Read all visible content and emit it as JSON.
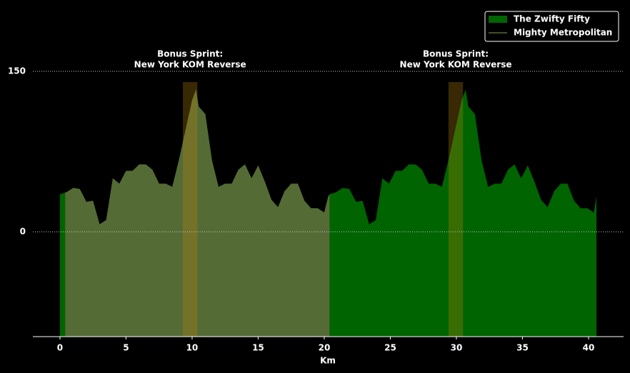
{
  "chart_data": {
    "type": "area",
    "xlabel": "Km",
    "xlim": [
      -2.05,
      42.65
    ],
    "ylim": [
      -98,
      216.7
    ],
    "xticks": [
      0,
      5,
      10,
      15,
      20,
      25,
      30,
      35,
      40
    ],
    "yticks": [
      0,
      150
    ],
    "grid": "y",
    "legend": "upper right",
    "series": [
      {
        "name": "The Zwifty Fifty",
        "color": "#006400",
        "legend_marker": "patch",
        "x": [
          0,
          0.5,
          1,
          1.5,
          2,
          2.5,
          3,
          3.5,
          4,
          4.5,
          5,
          5.5,
          6,
          6.5,
          7,
          7.5,
          8,
          8.5,
          9,
          9.5,
          10,
          10.3,
          10.5,
          11,
          11.5,
          12,
          12.5,
          13,
          13.5,
          14,
          14.5,
          15,
          15.5,
          16,
          16.5,
          17,
          17.5,
          18,
          18.5,
          19,
          19.5,
          20,
          20.3,
          20.4,
          20.9,
          21.4,
          21.9,
          22.4,
          22.9,
          23.4,
          23.9,
          24.4,
          24.9,
          25.4,
          25.9,
          26.4,
          26.9,
          27.4,
          27.9,
          28.4,
          28.9,
          29.4,
          29.9,
          30.4,
          30.7,
          30.9,
          31.4,
          31.9,
          32.4,
          32.9,
          33.4,
          33.9,
          34.4,
          34.9,
          35.4,
          35.9,
          36.4,
          36.9,
          37.4,
          37.9,
          38.4,
          38.9,
          39.4,
          39.9,
          40.4,
          40.6
        ],
        "values": [
          35,
          37,
          41,
          40,
          28,
          29,
          7,
          11,
          50,
          45,
          57,
          57,
          63,
          63,
          58,
          45,
          45,
          42,
          67,
          95,
          123,
          133,
          117,
          110,
          67,
          42,
          45,
          45,
          58,
          63,
          50,
          62,
          47,
          30,
          23,
          38,
          45,
          45,
          29,
          22,
          22,
          18,
          33,
          35,
          37,
          41,
          40,
          28,
          29,
          7,
          11,
          50,
          45,
          57,
          57,
          63,
          63,
          58,
          45,
          45,
          42,
          67,
          95,
          123,
          133,
          117,
          110,
          67,
          42,
          45,
          45,
          58,
          63,
          50,
          62,
          47,
          30,
          23,
          38,
          45,
          45,
          29,
          22,
          22,
          18,
          33
        ]
      },
      {
        "name": "Mighty Metropolitan",
        "color": "#556b35",
        "legend_marker": "line",
        "x": [
          0.4,
          0.5,
          1,
          1.5,
          2,
          2.5,
          3,
          3.5,
          4,
          4.5,
          5,
          5.5,
          6,
          6.5,
          7,
          7.5,
          8,
          8.5,
          9,
          9.5,
          10,
          10.3,
          10.5,
          11,
          11.5,
          12,
          12.5,
          13,
          13.5,
          14,
          14.5,
          15,
          15.5,
          16,
          16.5,
          17,
          17.5,
          18,
          18.5,
          19,
          19.5,
          20,
          20.3,
          20.4
        ],
        "values": [
          37,
          37,
          41,
          40,
          28,
          29,
          7,
          11,
          50,
          45,
          57,
          57,
          63,
          63,
          58,
          45,
          45,
          42,
          67,
          95,
          123,
          133,
          117,
          110,
          67,
          42,
          45,
          45,
          58,
          63,
          50,
          62,
          47,
          30,
          23,
          38,
          45,
          45,
          29,
          22,
          22,
          18,
          33,
          35
        ]
      }
    ],
    "sprints": [
      {
        "range": [
          9.3,
          10.4
        ],
        "label": [
          "Bonus Sprint:",
          "New York KOM Reverse"
        ]
      },
      {
        "range": [
          29.4,
          30.5
        ],
        "label": [
          "Bonus Sprint:",
          "New York KOM Reverse"
        ]
      }
    ],
    "sprint_color": "#b8860b"
  }
}
